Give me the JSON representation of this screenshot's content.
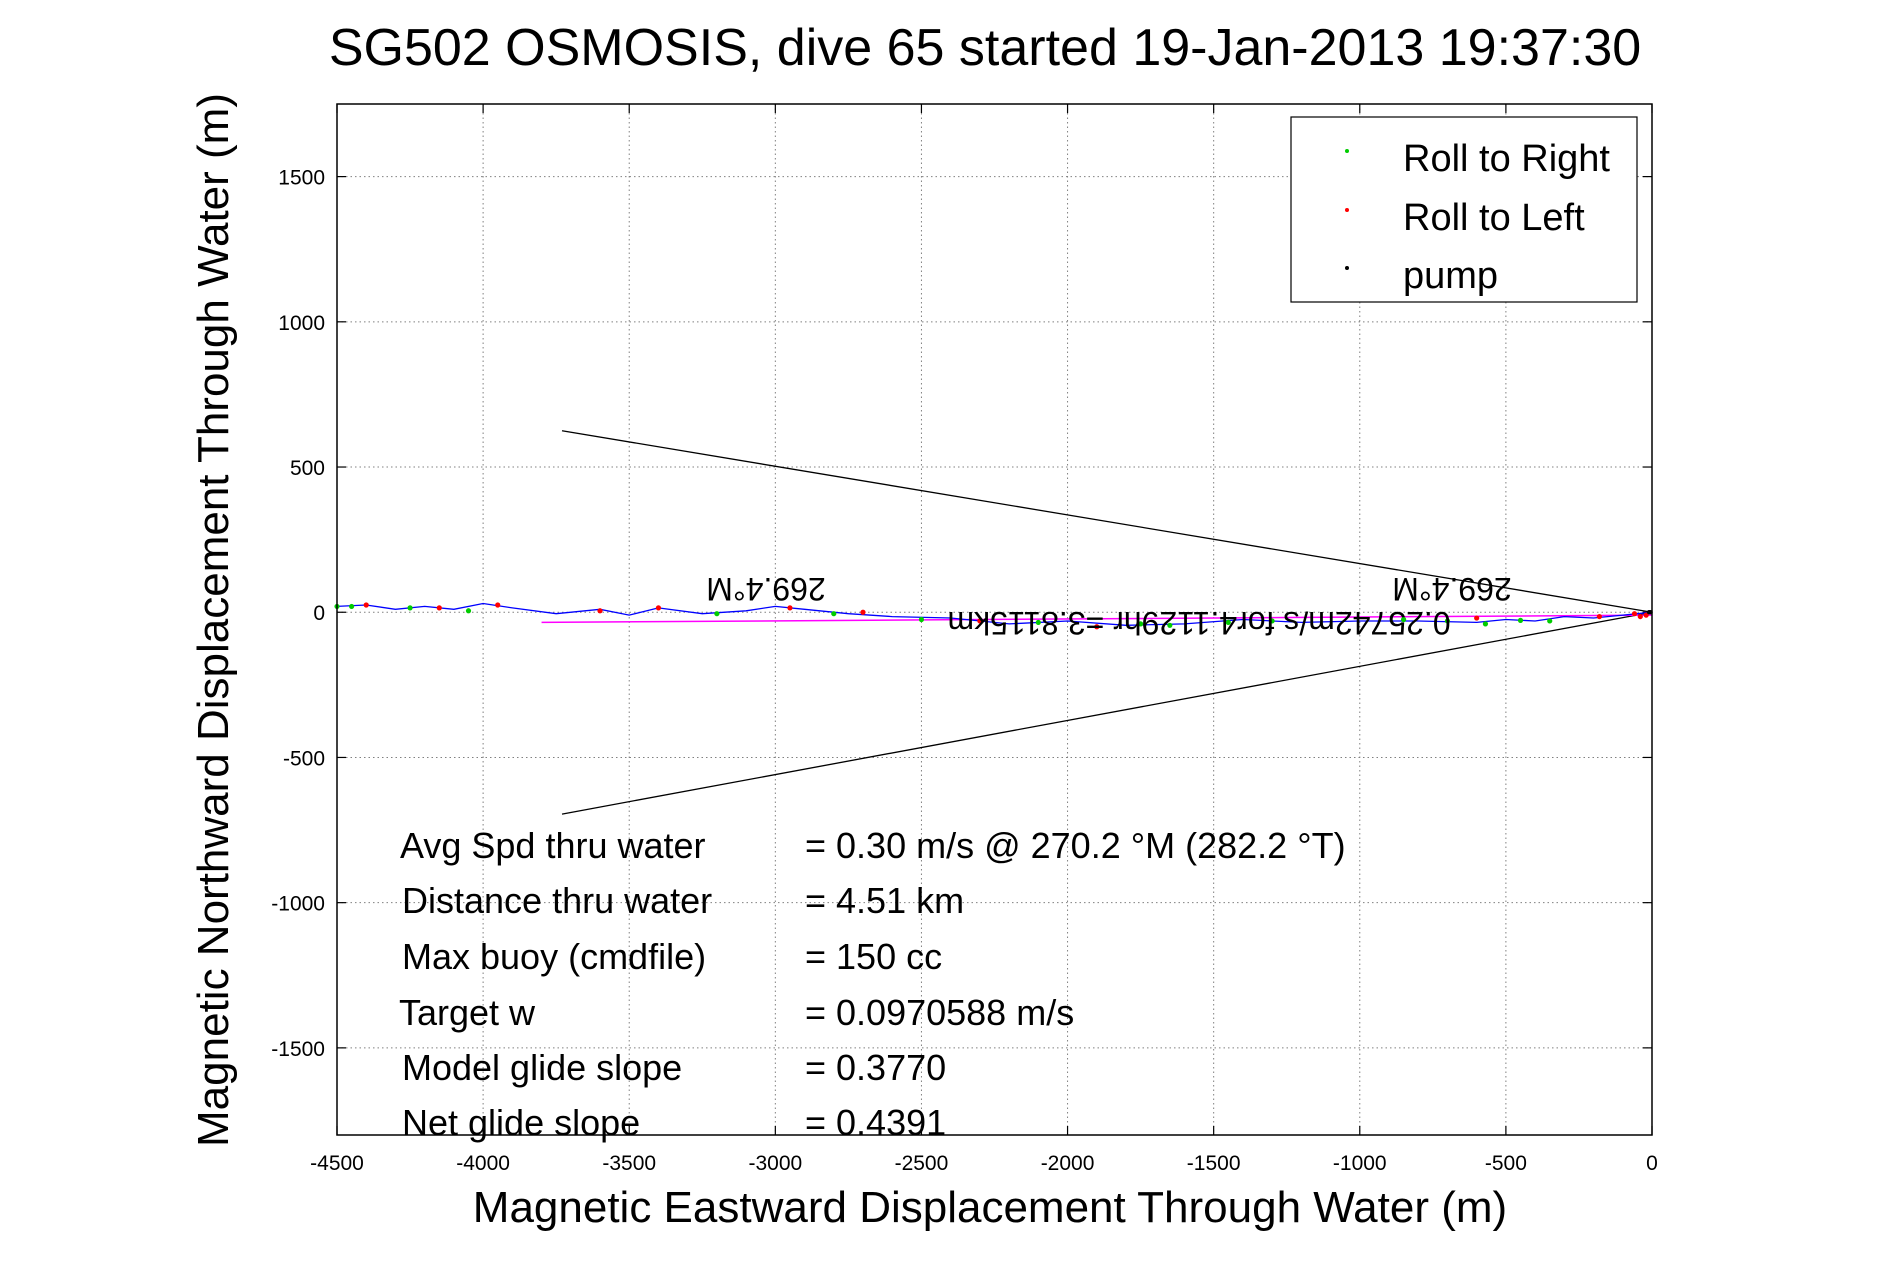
{
  "chart_data": {
    "type": "line",
    "title": "SG502 OSMOSIS, dive 65 started 19-Jan-2013 19:37:30",
    "xlabel": "Magnetic Eastward Displacement Through Water (m)",
    "ylabel": "Magnetic Northward Displacement Through Water (m)",
    "xlim": [
      -4500,
      0
    ],
    "ylim": [
      -1800,
      1750
    ],
    "xticks": [
      -4500,
      -4000,
      -3500,
      -3000,
      -2500,
      -2000,
      -1500,
      -1000,
      -500,
      0
    ],
    "xtick_labels": [
      "-4500",
      "-4000",
      "-3500",
      "-3000",
      "-2500",
      "-2000",
      "-1500",
      "-1000",
      "-500",
      "0"
    ],
    "yticks": [
      -1500,
      -1000,
      -500,
      0,
      500,
      1000,
      1500
    ],
    "ytick_labels": [
      "-1500",
      "-1000",
      "-500",
      "0",
      "500",
      "1000",
      "1500"
    ],
    "grid": true,
    "legend_position": "top-right",
    "colors": {
      "track": "#0000ff",
      "roll_right": "#00cc00",
      "roll_left": "#ff0000",
      "pump": "#000000",
      "projection": "#ff00ff",
      "cone": "#000000",
      "grid": "#808080"
    },
    "legend": [
      {
        "name": "Roll to Right",
        "color": "#00cc00"
      },
      {
        "name": "Roll to Left",
        "color": "#ff0000"
      },
      {
        "name": "pump",
        "color": "#000000"
      }
    ],
    "series": [
      {
        "name": "track",
        "x": [
          0,
          -100,
          -200,
          -300,
          -400,
          -500,
          -600,
          -800,
          -1000,
          -1200,
          -1400,
          -1600,
          -1800,
          -2000,
          -2200,
          -2400,
          -2600,
          -2750,
          -2900,
          -3000,
          -3100,
          -3250,
          -3400,
          -3500,
          -3600,
          -3750,
          -3900,
          -4000,
          -4100,
          -4200,
          -4300,
          -4400,
          -4500
        ],
        "y": [
          0,
          -10,
          -20,
          -15,
          -30,
          -25,
          -35,
          -30,
          -30,
          -35,
          -25,
          -40,
          -45,
          -30,
          -40,
          -20,
          -15,
          -5,
          10,
          20,
          5,
          -5,
          15,
          -10,
          10,
          -5,
          15,
          30,
          10,
          20,
          10,
          25,
          20
        ]
      }
    ],
    "roll_right_points": {
      "x": [
        -350,
        -450,
        -570,
        -700,
        -850,
        -1300,
        -1450,
        -1650,
        -1750,
        -2100,
        -2500,
        -2800,
        -3200,
        -4050,
        -4250,
        -4450,
        -4500
      ],
      "y": [
        -30,
        -28,
        -40,
        -30,
        -25,
        -30,
        -35,
        -45,
        -40,
        -35,
        -25,
        -5,
        -5,
        5,
        15,
        20,
        20
      ]
    },
    "roll_left_points": {
      "x": [
        -20,
        -40,
        -60,
        -180,
        -600,
        -1900,
        -2300,
        -2700,
        -2950,
        -3400,
        -3600,
        -3950,
        -4150,
        -4400
      ],
      "y": [
        -10,
        -15,
        -5,
        -15,
        -20,
        -50,
        -30,
        0,
        15,
        15,
        5,
        25,
        15,
        25
      ]
    },
    "pump_points": {
      "x": [
        -5,
        -10
      ],
      "y": [
        0,
        0
      ]
    },
    "projection_line": {
      "x": [
        0,
        -3800
      ],
      "y": [
        -10,
        -35
      ]
    },
    "cone_lines": [
      {
        "x": [
          0,
          -3730
        ],
        "y": [
          0,
          625
        ]
      },
      {
        "x": [
          0,
          -3730
        ],
        "y": [
          0,
          -695
        ]
      }
    ],
    "annotations": {
      "heading_left": "269.4°M",
      "heading_right": "269.4°M",
      "segment": "0.25742m/s for4.1129hr =3.8115km",
      "stats": [
        {
          "label": "Avg Spd thru water",
          "value": "=  0.30 m/s @ 270.2 °M (282.2 °T)"
        },
        {
          "label": "Distance thru water",
          "value": "=  4.51 km"
        },
        {
          "label": "Max buoy (cmdfile)",
          "value": "= 150 cc"
        },
        {
          "label": "Target w",
          "value": "= 0.0970588 m/s"
        },
        {
          "label": "Model glide slope",
          "value": "= 0.3770"
        },
        {
          "label": "Net glide slope",
          "value": "= 0.4391"
        }
      ]
    }
  }
}
